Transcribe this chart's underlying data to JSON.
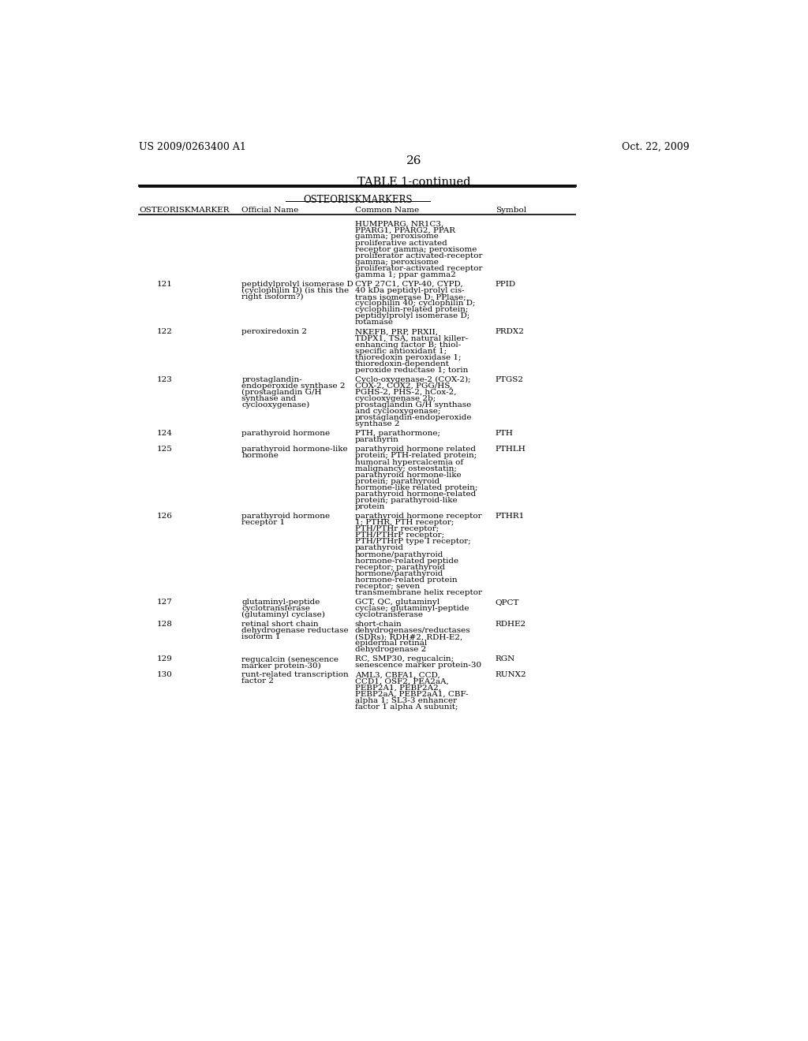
{
  "header_left": "US 2009/0263400 A1",
  "header_right": "Oct. 22, 2009",
  "page_number": "26",
  "table_title": "TABLE 1-continued",
  "section_title": "OSTEORISKMARKERS",
  "col_headers": [
    "OSTEORISKMARKER  Official Name",
    "Common Name",
    "Symbol"
  ],
  "rows": [
    {
      "num": "",
      "official": "",
      "common": "HUMPPARG, NR1C3,\nPPARG1, PPARG2, PPAR\ngamma; peroxisome\nproliferative activated\nreceptor gamma; peroxisome\nproliferator activated-receptor\ngamma; peroxisome\nproliferator-activated receptor\ngamma 1; ppar gamma2",
      "symbol": ""
    },
    {
      "num": "121",
      "official": "peptidylprolyl isomerase D\n(cyclophilin D) (is this the\nright isoform?)",
      "common": "CYP 27C1, CYP-40, CYPD,\n40 kDa peptidyl-prolyl cis-\ntrans isomerase D; PPlase;\ncyclophilin 40; cyclophilin D;\ncyclophilin-related protein;\npeptidylprolyl isomerase D;\nrotamase",
      "symbol": "PPID"
    },
    {
      "num": "122",
      "official": "peroxiredoxin 2",
      "common": "NKEFB, PRP, PRXII,\nTDPX1, TSA, natural killer-\nenhancing factor B; thiol-\nspecific antioxidant 1;\nthioredoxin peroxidase 1;\nthioredoxin-dependent\nperoxide reductase 1; torin",
      "symbol": "PRDX2"
    },
    {
      "num": "123",
      "official": "prostaglandin-\nendoperoxide synthase 2\n(prostaglandin G/H\nsynthase and\ncyclooxygenase)",
      "common": "Cyclo-oxygenase-2 (COX-2);\nCOX-2, COX2, PGG/HS,\nPGHS-2, PHS-2, hCox-2,\ncyclooxygenase 2b;\nprostaglandin G/H synthase\nand cyclooxygenase;\nprostaglandin-endoperoxide\nsynthase 2",
      "symbol": "PTGS2"
    },
    {
      "num": "124",
      "official": "parathyroid hormone",
      "common": "PTH, parathormone;\nparathyrin",
      "symbol": "PTH"
    },
    {
      "num": "125",
      "official": "parathyroid hormone-like\nhormone",
      "common": "parathyroid hormone related\nprotein; PTH-related protein;\nhumoral hypercalcemia of\nmalignancy; osteostatin;\nparathyroid hormone-like\nprotein; parathyroid\nhormone-like related protein;\nparathyroid hormone-related\nprotein; parathyroid-like\nprotein",
      "symbol": "PTHLH"
    },
    {
      "num": "126",
      "official": "parathyroid hormone\nreceptor 1",
      "common": "parathyroid hormone receptor\n1; PTHR, PTH receptor;\nPTH/PTHr receptor;\nPTH/PTHrP receptor;\nPTH/PTHrP type I receptor;\nparathyroid\nhormone/parathyroid\nhormone-related peptide\nreceptor; parathyroid\nhormone/parathyroid\nhormone-related protein\nreceptor; seven\ntransmembrane helix receptor",
      "symbol": "PTHR1"
    },
    {
      "num": "127",
      "official": "glutaminyl-peptide\ncyclotransferase\n(glutaminyl cyclase)",
      "common": "GCT, QC, glutaminyl\ncyclase; glutaminyl-peptide\ncyclotransferase",
      "symbol": "QPCT"
    },
    {
      "num": "128",
      "official": "retinal short chain\ndehydrogenase reductase\nisoform 1",
      "common": "short-chain\ndehydrogenases/reductases\n(SDRs); RDH#2, RDH-E2,\nepidermal retinal\ndehydrogenase 2",
      "symbol": "RDHE2"
    },
    {
      "num": "129",
      "official": "regucalcin (senescence\nmarker protein-30)",
      "common": "RC, SMP30, regucalcin;\nsenescence marker protein-30",
      "symbol": "RGN"
    },
    {
      "num": "130",
      "official": "runt-related transcription\nfactor 2",
      "common": "AML3, CBFA1, CCD,\nCCD1, OSF2, PEA2aA,\nPEBP2A1, PEBP2A2,\nPEBP2aA, PEBP2aA1, CBF-\nalpha 1; SL3-3 enhancer\nfactor 1 alpha A subunit;",
      "symbol": "RUNX2"
    }
  ]
}
